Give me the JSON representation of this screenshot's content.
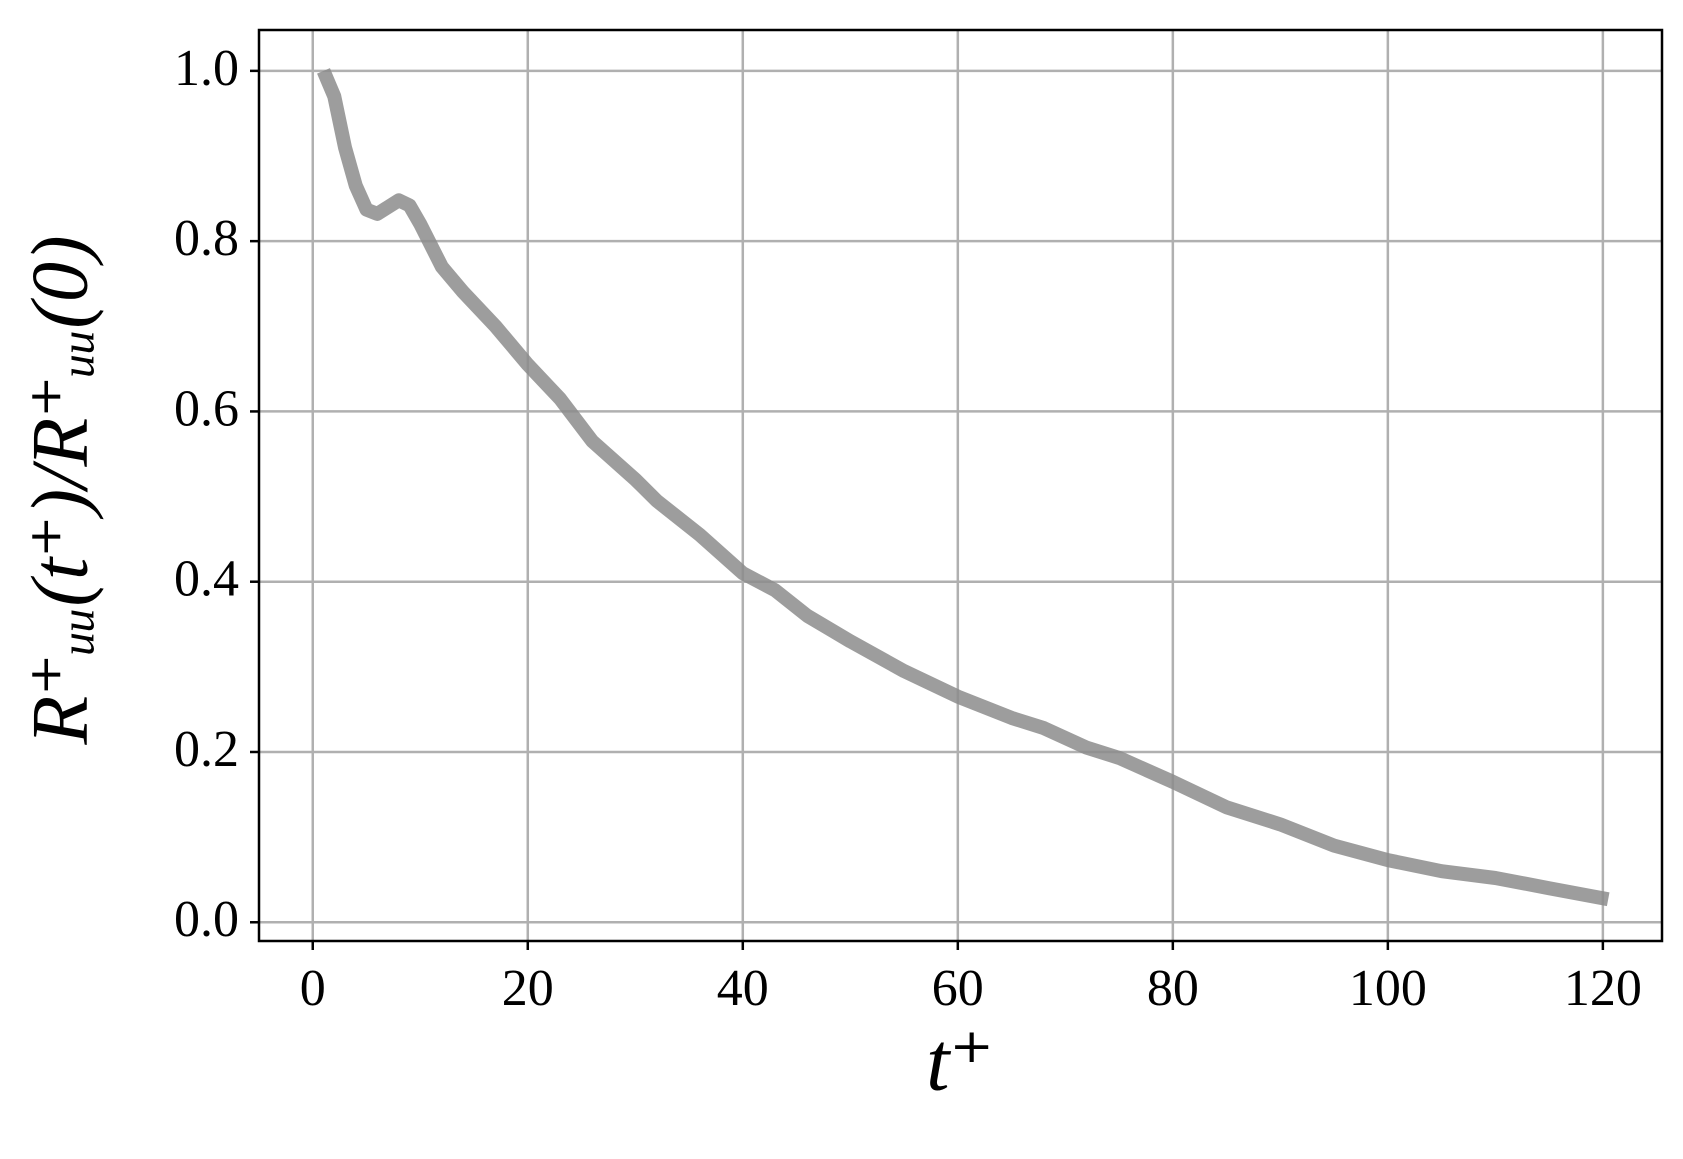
{
  "chart_data": {
    "type": "line",
    "xlabel": "t⁺",
    "ylabel": "R⁺ᵤᵤ(t⁺)/R⁺ᵤᵤ(0)",
    "x": [
      1,
      2,
      3,
      4,
      5,
      6,
      7,
      8,
      9,
      10,
      12,
      14,
      17,
      20,
      23,
      26,
      30,
      32,
      36,
      40,
      43,
      46,
      50,
      55,
      60,
      65,
      68,
      72,
      75,
      80,
      85,
      90,
      95,
      100,
      105,
      110,
      115,
      120.5
    ],
    "series": [
      {
        "color": "#8c8c8c",
        "values": [
          1.0,
          0.97,
          0.91,
          0.865,
          0.837,
          0.832,
          0.84,
          0.848,
          0.842,
          0.82,
          0.77,
          0.74,
          0.7,
          0.655,
          0.615,
          0.565,
          0.52,
          0.495,
          0.455,
          0.41,
          0.39,
          0.36,
          0.33,
          0.295,
          0.265,
          0.24,
          0.228,
          0.205,
          0.193,
          0.165,
          0.135,
          0.115,
          0.09,
          0.073,
          0.06,
          0.052,
          0.04,
          0.027
        ]
      }
    ],
    "xlim": [
      -5,
      125.5
    ],
    "ylim": [
      -0.022,
      1.048
    ],
    "xticks": [
      0,
      20,
      40,
      60,
      80,
      100,
      120
    ],
    "yticks": [
      {
        "value": 0,
        "label": "0.0"
      },
      {
        "value": 0.2,
        "label": "0.2"
      },
      {
        "value": 0.4,
        "label": "0.4"
      },
      {
        "value": 0.6,
        "label": "0.6"
      },
      {
        "value": 0.8,
        "label": "0.8"
      },
      {
        "value": 1,
        "label": "1.0"
      }
    ],
    "grid": true
  }
}
